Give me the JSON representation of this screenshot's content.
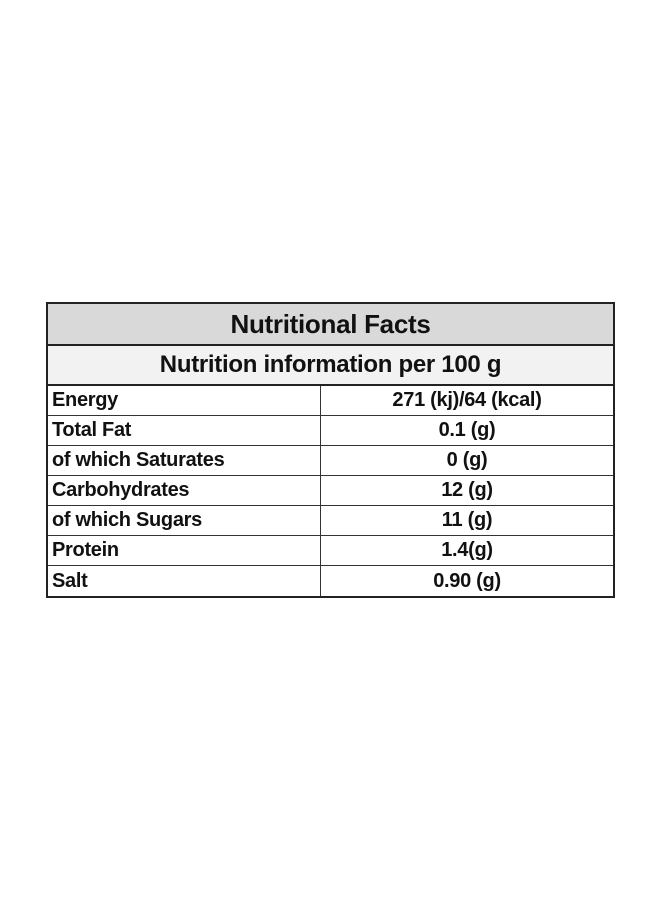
{
  "table": {
    "title": "Nutritional Facts",
    "subtitle": "Nutrition information per 100 g",
    "rows": [
      {
        "label": "Energy",
        "value": "271 (kj)/64 (kcal)"
      },
      {
        "label": "Total Fat",
        "value": "0.1 (g)"
      },
      {
        "label": "of which Saturates",
        "value": "0 (g)"
      },
      {
        "label": "Carbohydrates",
        "value": "12 (g)"
      },
      {
        "label": "of which Sugars",
        "value": "11 (g)"
      },
      {
        "label": "Protein",
        "value": "1.4(g)"
      },
      {
        "label": "Salt",
        "value": "0.90 (g)"
      }
    ]
  }
}
